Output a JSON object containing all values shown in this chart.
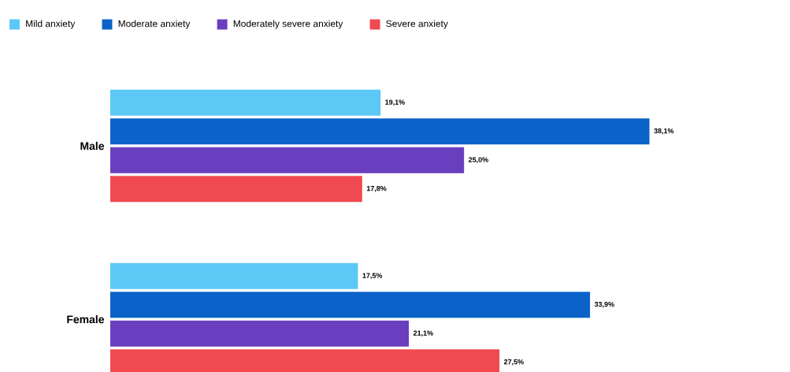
{
  "chart_data": {
    "type": "bar",
    "orientation": "horizontal",
    "categories": [
      "Male",
      "Female"
    ],
    "legend": "top",
    "series": [
      {
        "name": "Mild anxiety",
        "color": "#5bc8f5",
        "values": [
          19.1,
          17.5
        ],
        "value_labels": [
          "19,1%",
          "17,5%"
        ]
      },
      {
        "name": "Moderate anxiety",
        "color": "#0b63c9",
        "values": [
          38.1,
          33.9
        ],
        "value_labels": [
          "38,1%",
          "33,9%"
        ]
      },
      {
        "name": "Moderately severe anxiety",
        "color": "#6a3fbf",
        "values": [
          25.0,
          21.1
        ],
        "value_labels": [
          "25,0%",
          "21,1%"
        ]
      },
      {
        "name": "Severe anxiety",
        "color": "#f04a50",
        "values": [
          17.8,
          27.5
        ],
        "value_labels": [
          "17,8%",
          "27,5%"
        ]
      }
    ]
  }
}
